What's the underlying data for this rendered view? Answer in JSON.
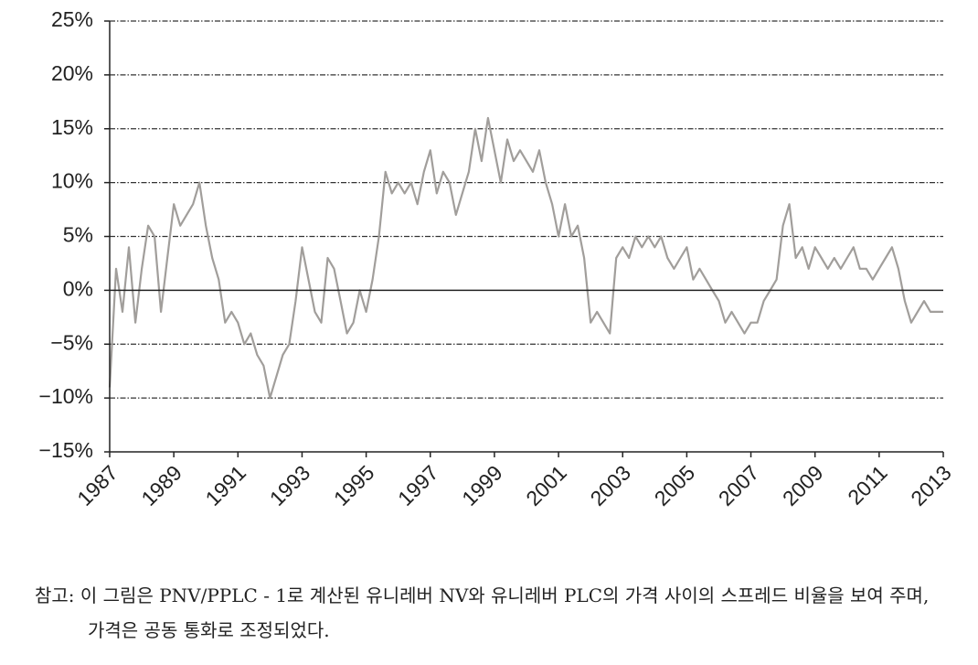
{
  "chart_data": {
    "type": "line",
    "x": [
      1987.0,
      1987.2,
      1987.4,
      1987.6,
      1987.8,
      1988.0,
      1988.2,
      1988.4,
      1988.6,
      1988.8,
      1989.0,
      1989.2,
      1989.4,
      1989.6,
      1989.8,
      1990.0,
      1990.2,
      1990.4,
      1990.6,
      1990.8,
      1991.0,
      1991.2,
      1991.4,
      1991.6,
      1991.8,
      1992.0,
      1992.2,
      1992.4,
      1992.6,
      1992.8,
      1993.0,
      1993.2,
      1993.4,
      1993.6,
      1993.8,
      1994.0,
      1994.2,
      1994.4,
      1994.6,
      1994.8,
      1995.0,
      1995.2,
      1995.4,
      1995.6,
      1995.8,
      1996.0,
      1996.2,
      1996.4,
      1996.6,
      1996.8,
      1997.0,
      1997.2,
      1997.4,
      1997.6,
      1997.8,
      1998.0,
      1998.2,
      1998.4,
      1998.6,
      1998.8,
      1999.0,
      1999.2,
      1999.4,
      1999.6,
      1999.8,
      2000.0,
      2000.2,
      2000.4,
      2000.6,
      2000.8,
      2001.0,
      2001.2,
      2001.4,
      2001.6,
      2001.8,
      2002.0,
      2002.2,
      2002.4,
      2002.6,
      2002.8,
      2003.0,
      2003.2,
      2003.4,
      2003.6,
      2003.8,
      2004.0,
      2004.2,
      2004.4,
      2004.6,
      2004.8,
      2005.0,
      2005.2,
      2005.4,
      2005.6,
      2005.8,
      2006.0,
      2006.2,
      2006.4,
      2006.6,
      2006.8,
      2007.0,
      2007.2,
      2007.4,
      2007.6,
      2007.8,
      2008.0,
      2008.2,
      2008.4,
      2008.6,
      2008.8,
      2009.0,
      2009.2,
      2009.4,
      2009.6,
      2009.8,
      2010.0,
      2010.2,
      2010.4,
      2010.6,
      2010.8,
      2011.0,
      2011.2,
      2011.4,
      2011.6,
      2011.8,
      2012.0,
      2012.2,
      2012.4,
      2012.6,
      2012.8,
      2013.0
    ],
    "series": [
      {
        "color": "#a19e9b",
        "values": [
          -9,
          2,
          -2,
          4,
          -3,
          2,
          6,
          5,
          -2,
          3,
          8,
          6,
          7,
          8,
          10,
          6,
          3,
          1,
          -3,
          -2,
          -3,
          -5,
          -4,
          -6,
          -7,
          -10,
          -8,
          -6,
          -5,
          -1,
          4,
          1,
          -2,
          -3,
          3,
          2,
          -1,
          -4,
          -3,
          0,
          -2,
          1,
          5,
          11,
          9,
          10,
          9,
          10,
          8,
          11,
          13,
          9,
          11,
          10,
          7,
          9,
          11,
          15,
          12,
          16,
          13,
          10,
          14,
          12,
          13,
          12,
          11,
          13,
          10,
          8,
          5,
          8,
          5,
          6,
          3,
          -3,
          -2,
          -3,
          -4,
          3,
          4,
          3,
          5,
          4,
          5,
          4,
          5,
          3,
          2,
          3,
          4,
          1,
          2,
          1,
          0,
          -1,
          -3,
          -2,
          -3,
          -4,
          -3,
          -3,
          -1,
          0,
          1,
          6,
          8,
          3,
          4,
          2,
          4,
          3,
          2,
          3,
          2,
          3,
          4,
          2,
          2,
          1,
          2,
          3,
          4,
          2,
          -1,
          -3,
          -2,
          -1,
          -2,
          -2,
          -2
        ]
      }
    ],
    "xlim": [
      1987,
      2013
    ],
    "xticks": [
      1987,
      1989,
      1991,
      1993,
      1995,
      1997,
      1999,
      2001,
      2003,
      2005,
      2007,
      2009,
      2011,
      2013
    ],
    "ylim": [
      -15,
      25
    ],
    "yticks": [
      {
        "value": -15,
        "label": "−15%"
      },
      {
        "value": -10,
        "label": "−10%"
      },
      {
        "value": -5,
        "label": "−5%"
      },
      {
        "value": 0,
        "label": "0%"
      },
      {
        "value": 5,
        "label": "5%"
      },
      {
        "value": 10,
        "label": "10%"
      },
      {
        "value": 15,
        "label": "15%"
      },
      {
        "value": 20,
        "label": "20%"
      },
      {
        "value": 25,
        "label": "25%"
      }
    ],
    "grid": true,
    "note": "참고: 이 그림은 PNV/PPLC - 1로 계산된 유니레버 NV와 유니레버 PLC의 가격 사이의 스프레드 비율을 보여 주며, 가격은 공동 통화로 조정되었다."
  }
}
